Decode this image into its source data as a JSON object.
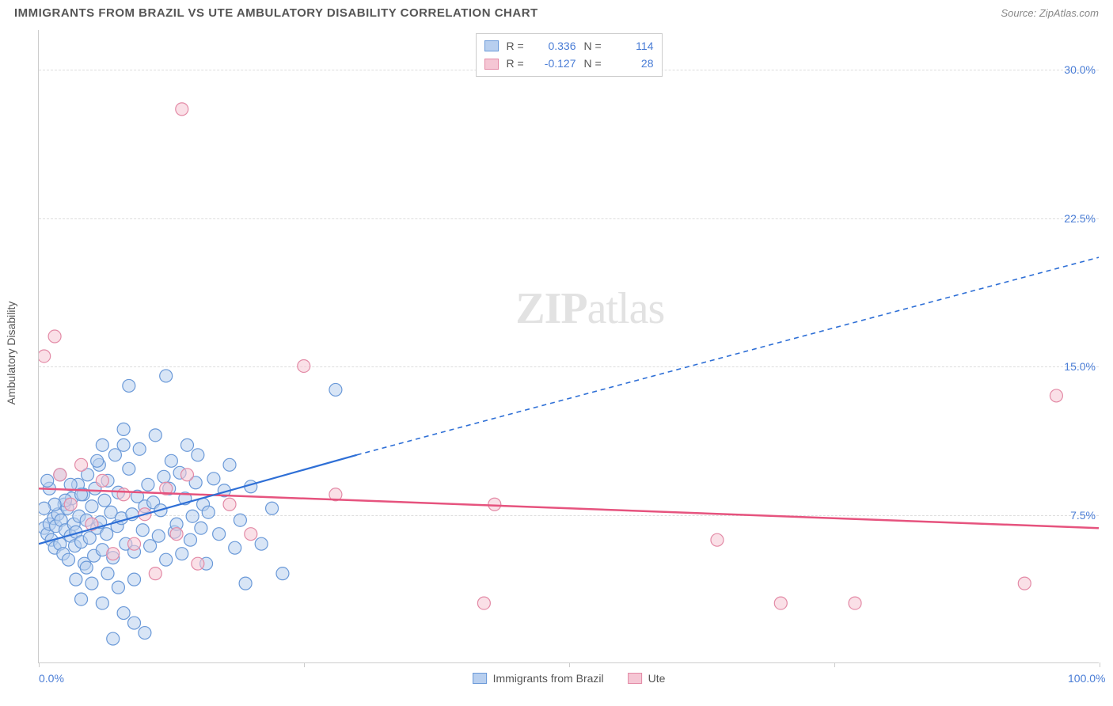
{
  "header": {
    "title": "IMMIGRANTS FROM BRAZIL VS UTE AMBULATORY DISABILITY CORRELATION CHART",
    "source_prefix": "Source: ",
    "source": "ZipAtlas.com"
  },
  "watermark": {
    "part1": "ZIP",
    "part2": "atlas"
  },
  "chart": {
    "type": "scatter",
    "yaxis_title": "Ambulatory Disability",
    "xlim": [
      0,
      100
    ],
    "ylim": [
      0,
      32
    ],
    "xticks": [
      {
        "v": 0,
        "label": "0.0%"
      },
      {
        "v": 25,
        "label": ""
      },
      {
        "v": 50,
        "label": ""
      },
      {
        "v": 75,
        "label": ""
      },
      {
        "v": 100,
        "label": "100.0%"
      }
    ],
    "yticks": [
      {
        "v": 7.5,
        "label": "7.5%"
      },
      {
        "v": 15.0,
        "label": "15.0%"
      },
      {
        "v": 22.5,
        "label": "22.5%"
      },
      {
        "v": 30.0,
        "label": "30.0%"
      }
    ],
    "grid_color": "#dddddd",
    "background_color": "#ffffff",
    "axis_color": "#cccccc",
    "tick_label_color": "#4a7dd6",
    "marker_radius": 8,
    "marker_stroke_width": 1.2,
    "series": [
      {
        "id": "brazil",
        "name": "Immigrants from Brazil",
        "fill": "#b8cfef",
        "stroke": "#6a99d8",
        "fill_opacity": 0.55,
        "R": "0.336",
        "N": "114",
        "trend": {
          "solid": {
            "x1": 0,
            "y1": 6.0,
            "x2": 30,
            "y2": 10.5
          },
          "dashed": {
            "x1": 30,
            "y1": 10.5,
            "x2": 100,
            "y2": 20.5
          },
          "color": "#2e6fd6",
          "width": 2.2,
          "dash": "6,5"
        },
        "points": [
          [
            0.5,
            6.8
          ],
          [
            0.8,
            6.5
          ],
          [
            1.0,
            7.0
          ],
          [
            1.2,
            6.2
          ],
          [
            1.4,
            7.3
          ],
          [
            1.5,
            5.8
          ],
          [
            1.6,
            6.9
          ],
          [
            1.8,
            7.5
          ],
          [
            2.0,
            6.0
          ],
          [
            2.1,
            7.2
          ],
          [
            2.3,
            5.5
          ],
          [
            2.4,
            8.0
          ],
          [
            2.5,
            6.7
          ],
          [
            2.7,
            7.8
          ],
          [
            2.8,
            5.2
          ],
          [
            3.0,
            6.4
          ],
          [
            3.1,
            8.3
          ],
          [
            3.3,
            7.0
          ],
          [
            3.4,
            5.9
          ],
          [
            3.5,
            6.6
          ],
          [
            3.7,
            9.0
          ],
          [
            3.8,
            7.4
          ],
          [
            4.0,
            6.1
          ],
          [
            4.2,
            8.5
          ],
          [
            4.3,
            5.0
          ],
          [
            4.5,
            7.2
          ],
          [
            4.6,
            9.5
          ],
          [
            4.8,
            6.3
          ],
          [
            5.0,
            7.9
          ],
          [
            5.2,
            5.4
          ],
          [
            5.3,
            8.8
          ],
          [
            5.5,
            6.8
          ],
          [
            5.7,
            10.0
          ],
          [
            5.8,
            7.1
          ],
          [
            6.0,
            5.7
          ],
          [
            6.2,
            8.2
          ],
          [
            6.4,
            6.5
          ],
          [
            6.5,
            9.2
          ],
          [
            6.8,
            7.6
          ],
          [
            7.0,
            5.3
          ],
          [
            7.2,
            10.5
          ],
          [
            7.4,
            6.9
          ],
          [
            7.5,
            8.6
          ],
          [
            7.8,
            7.3
          ],
          [
            8.0,
            11.0
          ],
          [
            8.2,
            6.0
          ],
          [
            8.5,
            9.8
          ],
          [
            8.8,
            7.5
          ],
          [
            9.0,
            5.6
          ],
          [
            9.3,
            8.4
          ],
          [
            9.5,
            10.8
          ],
          [
            9.8,
            6.7
          ],
          [
            10.0,
            7.9
          ],
          [
            10.3,
            9.0
          ],
          [
            10.5,
            5.9
          ],
          [
            10.8,
            8.1
          ],
          [
            11.0,
            11.5
          ],
          [
            11.3,
            6.4
          ],
          [
            11.5,
            7.7
          ],
          [
            11.8,
            9.4
          ],
          [
            12.0,
            5.2
          ],
          [
            12.3,
            8.8
          ],
          [
            12.5,
            10.2
          ],
          [
            12.8,
            6.6
          ],
          [
            13.0,
            7.0
          ],
          [
            13.3,
            9.6
          ],
          [
            13.5,
            5.5
          ],
          [
            13.8,
            8.3
          ],
          [
            14.0,
            11.0
          ],
          [
            14.3,
            6.2
          ],
          [
            14.5,
            7.4
          ],
          [
            14.8,
            9.1
          ],
          [
            15.0,
            10.5
          ],
          [
            15.3,
            6.8
          ],
          [
            15.5,
            8.0
          ],
          [
            15.8,
            5.0
          ],
          [
            16.0,
            7.6
          ],
          [
            16.5,
            9.3
          ],
          [
            17.0,
            6.5
          ],
          [
            17.5,
            8.7
          ],
          [
            18.0,
            10.0
          ],
          [
            18.5,
            5.8
          ],
          [
            19.0,
            7.2
          ],
          [
            19.5,
            4.0
          ],
          [
            20.0,
            8.9
          ],
          [
            21.0,
            6.0
          ],
          [
            22.0,
            7.8
          ],
          [
            23.0,
            4.5
          ],
          [
            4.0,
            3.2
          ],
          [
            6.0,
            3.0
          ],
          [
            8.0,
            2.5
          ],
          [
            7.0,
            1.2
          ],
          [
            9.0,
            2.0
          ],
          [
            10.0,
            1.5
          ],
          [
            8.5,
            14.0
          ],
          [
            8.0,
            11.8
          ],
          [
            6.0,
            11.0
          ],
          [
            5.5,
            10.2
          ],
          [
            4.0,
            8.5
          ],
          [
            3.0,
            9.0
          ],
          [
            2.5,
            8.2
          ],
          [
            2.0,
            9.5
          ],
          [
            1.5,
            8.0
          ],
          [
            1.0,
            8.8
          ],
          [
            0.8,
            9.2
          ],
          [
            0.5,
            7.8
          ],
          [
            3.5,
            4.2
          ],
          [
            4.5,
            4.8
          ],
          [
            5.0,
            4.0
          ],
          [
            6.5,
            4.5
          ],
          [
            7.5,
            3.8
          ],
          [
            9.0,
            4.2
          ],
          [
            12.0,
            14.5
          ],
          [
            28.0,
            13.8
          ]
        ]
      },
      {
        "id": "ute",
        "name": "Ute",
        "fill": "#f5c6d4",
        "stroke": "#e38aa6",
        "fill_opacity": 0.55,
        "R": "-0.127",
        "N": "28",
        "trend": {
          "solid": {
            "x1": 0,
            "y1": 8.8,
            "x2": 100,
            "y2": 6.8
          },
          "color": "#e6537e",
          "width": 2.5
        },
        "points": [
          [
            1.5,
            16.5
          ],
          [
            0.5,
            15.5
          ],
          [
            13.5,
            28.0
          ],
          [
            2.0,
            9.5
          ],
          [
            3.0,
            8.0
          ],
          [
            4.0,
            10.0
          ],
          [
            5.0,
            7.0
          ],
          [
            6.0,
            9.2
          ],
          [
            7.0,
            5.5
          ],
          [
            8.0,
            8.5
          ],
          [
            9.0,
            6.0
          ],
          [
            10.0,
            7.5
          ],
          [
            11.0,
            4.5
          ],
          [
            12.0,
            8.8
          ],
          [
            13.0,
            6.5
          ],
          [
            14.0,
            9.5
          ],
          [
            15.0,
            5.0
          ],
          [
            18.0,
            8.0
          ],
          [
            20.0,
            6.5
          ],
          [
            25.0,
            15.0
          ],
          [
            28.0,
            8.5
          ],
          [
            42.0,
            3.0
          ],
          [
            43.0,
            8.0
          ],
          [
            64.0,
            6.2
          ],
          [
            70.0,
            3.0
          ],
          [
            77.0,
            3.0
          ],
          [
            93.0,
            4.0
          ],
          [
            96.0,
            13.5
          ]
        ]
      }
    ]
  },
  "legend_top_labels": {
    "R": "R =",
    "N": "N ="
  }
}
